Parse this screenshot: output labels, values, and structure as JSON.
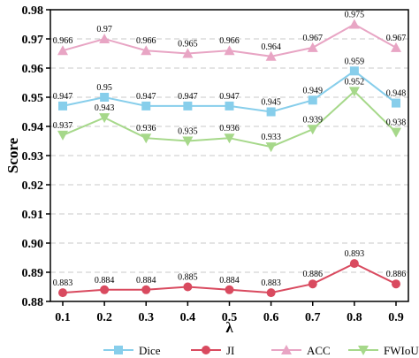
{
  "chart_data": {
    "type": "line",
    "title": "",
    "xlabel": "λ",
    "ylabel": "Score",
    "x": [
      0.1,
      0.2,
      0.3,
      0.4,
      0.5,
      0.6,
      0.7,
      0.8,
      0.9
    ],
    "x_tick_labels": [
      "0.1",
      "0.2",
      "0.3",
      "0.4",
      "0.5",
      "0.6",
      "0.7",
      "0.8",
      "0.9"
    ],
    "ylim": [
      0.88,
      0.98
    ],
    "y_ticks": [
      0.88,
      0.89,
      0.9,
      0.91,
      0.92,
      0.93,
      0.94,
      0.95,
      0.96,
      0.97,
      0.98
    ],
    "y_tick_labels": [
      "0.88",
      "0.89",
      "0.90",
      "0.91",
      "0.92",
      "0.93",
      "0.94",
      "0.95",
      "0.96",
      "0.97",
      "0.98"
    ],
    "grid": "horizontal dashed",
    "legend_position": "bottom",
    "series": [
      {
        "name": "Dice",
        "marker": "square",
        "color": "#87CEEB",
        "values": [
          0.947,
          0.95,
          0.947,
          0.947,
          0.947,
          0.945,
          0.949,
          0.959,
          0.948
        ],
        "labels": [
          "0.947",
          "0.95",
          "0.947",
          "0.947",
          "0.947",
          "0.945",
          "0.949",
          "0.959",
          "0.948"
        ]
      },
      {
        "name": "JI",
        "marker": "circle",
        "color": "#D94A5F",
        "values": [
          0.883,
          0.884,
          0.884,
          0.885,
          0.884,
          0.883,
          0.886,
          0.893,
          0.886
        ],
        "labels": [
          "0.883",
          "0.884",
          "0.884",
          "0.885",
          "0.884",
          "0.883",
          "0.886",
          "0.893",
          "0.886"
        ]
      },
      {
        "name": "ACC",
        "marker": "triangle-up",
        "color": "#E8A5C4",
        "values": [
          0.966,
          0.97,
          0.966,
          0.965,
          0.966,
          0.964,
          0.967,
          0.975,
          0.967
        ],
        "labels": [
          "0.966",
          "0.97",
          "0.966",
          "0.965",
          "0.966",
          "0.964",
          "0.967",
          "0.975",
          "0.967"
        ]
      },
      {
        "name": "FWIoU",
        "marker": "triangle-down",
        "color": "#A6D88A",
        "values": [
          0.937,
          0.943,
          0.936,
          0.935,
          0.936,
          0.933,
          0.939,
          0.952,
          0.938
        ],
        "labels": [
          "0.937",
          "0.943",
          "0.936",
          "0.935",
          "0.936",
          "0.933",
          "0.939",
          "0.952",
          "0.938"
        ]
      }
    ]
  }
}
